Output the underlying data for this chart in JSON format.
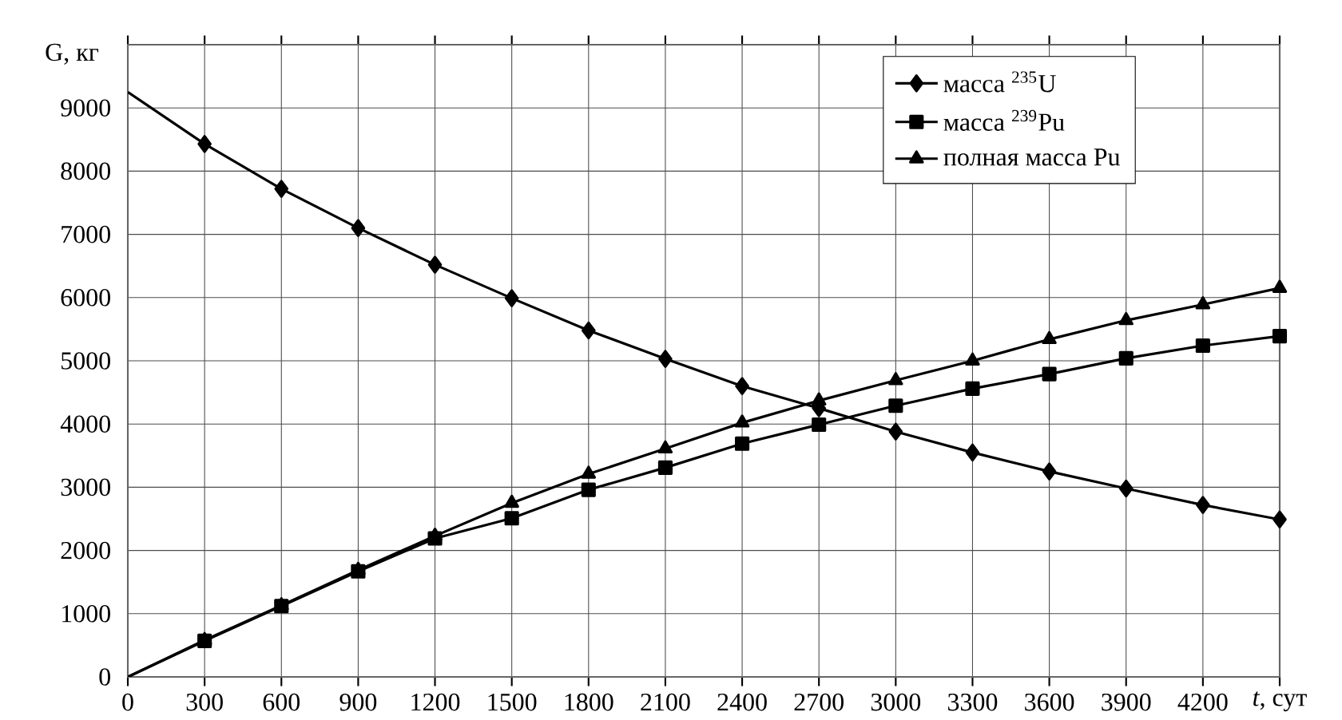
{
  "chart_data": {
    "type": "line",
    "xlabel": "*t*, сут",
    "ylabel": "G, кг",
    "x": [
      0,
      300,
      600,
      900,
      1200,
      1500,
      1800,
      2100,
      2400,
      2700,
      3000,
      3300,
      3600,
      3900,
      4200,
      4500
    ],
    "series": [
      {
        "name": "масса $^{235}$U",
        "color": "#000000",
        "marker": "diamond",
        "values": [
          9250,
          8430,
          7720,
          7100,
          6520,
          5990,
          5480,
          5030,
          4600,
          4250,
          3880,
          3550,
          3250,
          2980,
          2720,
          2490
        ]
      },
      {
        "name": "масса $^{239}$Pu",
        "color": "#000000",
        "marker": "square",
        "values": [
          0,
          570,
          1120,
          1670,
          2190,
          2510,
          2960,
          3310,
          3690,
          3990,
          4290,
          4560,
          4790,
          5040,
          5240,
          5390
        ]
      },
      {
        "name": "полная масса Pu",
        "color": "#000000",
        "marker": "triangle",
        "values": [
          0,
          580,
          1130,
          1690,
          2230,
          2750,
          3210,
          3610,
          4020,
          4370,
          4690,
          5000,
          5340,
          5640,
          5890,
          6150
        ]
      }
    ],
    "xlim": [
      0,
      4500
    ],
    "ylim": [
      0,
      10000
    ],
    "xticks": [
      0,
      300,
      600,
      900,
      1200,
      1500,
      1800,
      2100,
      2400,
      2700,
      3000,
      3300,
      3600,
      3900,
      4200,
      {
        "value": 4500,
        "label": null
      }
    ],
    "yticks": [
      0,
      1000,
      2000,
      3000,
      4000,
      5000,
      6000,
      7000,
      8000,
      9000
    ],
    "grid": true,
    "legend": "top right",
    "line_style": "solid"
  }
}
